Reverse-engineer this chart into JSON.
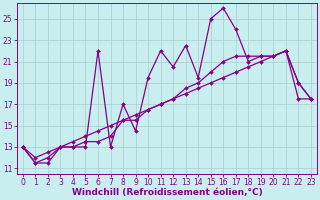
{
  "xlabel": "Windchill (Refroidissement éolien,°C)",
  "bg_color": "#c8eef0",
  "line_color": "#880088",
  "grid_color": "#aacccc",
  "xlim": [
    -0.5,
    23.5
  ],
  "ylim": [
    10.5,
    26.5
  ],
  "yticks": [
    11,
    13,
    15,
    17,
    19,
    21,
    23,
    25
  ],
  "xticks": [
    0,
    1,
    2,
    3,
    4,
    5,
    6,
    7,
    8,
    9,
    10,
    11,
    12,
    13,
    14,
    15,
    16,
    17,
    18,
    19,
    20,
    21,
    22,
    23
  ],
  "series": [
    {
      "x": [
        0,
        1,
        2,
        3,
        4,
        5,
        6,
        7,
        8,
        9,
        10,
        11,
        12,
        13,
        14,
        15,
        16,
        17,
        18,
        19,
        20,
        21,
        22,
        23
      ],
      "y": [
        13.0,
        11.5,
        11.5,
        13.0,
        13.0,
        13.0,
        22.0,
        13.0,
        17.0,
        14.5,
        19.5,
        22.0,
        20.5,
        22.5,
        19.5,
        25.0,
        26.0,
        24.0,
        21.0,
        21.5,
        21.5,
        22.0,
        19.0,
        17.5
      ],
      "lw": 0.9,
      "ls": "-"
    },
    {
      "x": [
        0,
        1,
        2,
        3,
        4,
        5,
        6,
        7,
        8,
        9,
        10,
        11,
        12,
        13,
        14,
        15,
        16,
        17,
        18,
        19,
        20,
        21,
        22,
        23
      ],
      "y": [
        13.0,
        11.5,
        12.0,
        13.0,
        13.0,
        13.5,
        13.5,
        14.0,
        15.5,
        15.5,
        16.5,
        17.0,
        17.5,
        18.5,
        19.0,
        20.0,
        21.0,
        21.5,
        21.5,
        21.5,
        21.5,
        22.0,
        19.0,
        17.5
      ],
      "lw": 0.9,
      "ls": "-"
    },
    {
      "x": [
        0,
        1,
        2,
        3,
        4,
        5,
        6,
        7,
        8,
        9,
        10,
        11,
        12,
        13,
        14,
        15,
        16,
        17,
        18,
        19,
        20,
        21,
        22,
        23
      ],
      "y": [
        13.0,
        12.0,
        12.5,
        13.0,
        13.5,
        14.0,
        14.5,
        15.0,
        15.5,
        16.0,
        16.5,
        17.0,
        17.5,
        18.0,
        18.5,
        19.0,
        19.5,
        20.0,
        20.5,
        21.0,
        21.5,
        22.0,
        17.5,
        17.5
      ],
      "lw": 0.9,
      "ls": "-"
    }
  ],
  "font_size": 6.5,
  "tick_font_size": 5.5,
  "marker": "D",
  "marker_size": 2.0
}
